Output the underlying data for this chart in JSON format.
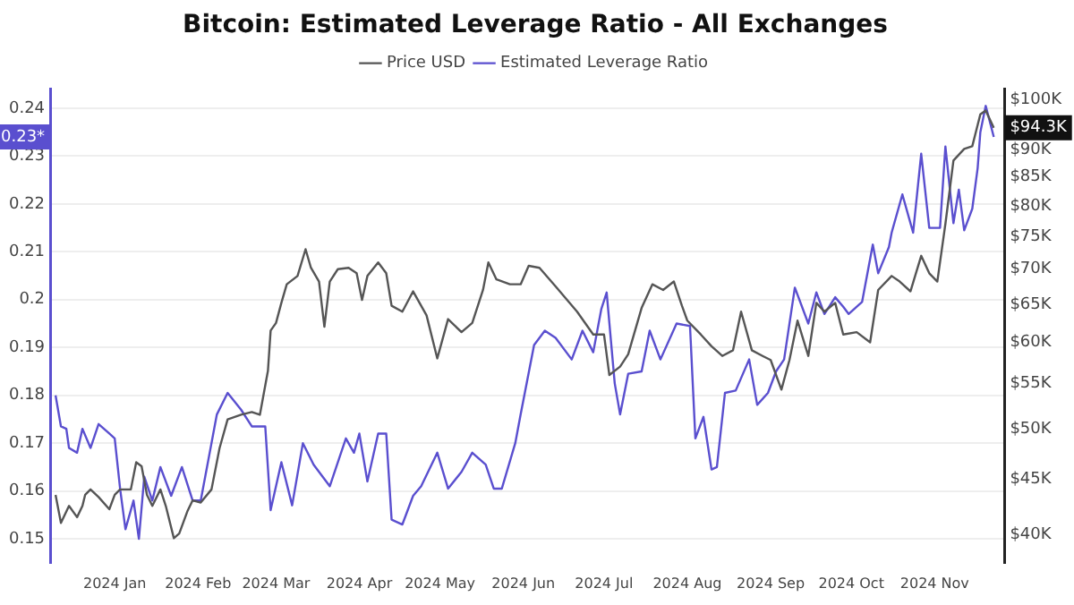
{
  "chart_data": {
    "type": "line",
    "title": "Bitcoin: Estimated Leverage Ratio - All Exchanges",
    "xlim": [
      "2023-12-08",
      "2024-11-27"
    ],
    "xticks": [
      {
        "value": "2024-01-01",
        "label": "2024 Jan"
      },
      {
        "value": "2024-02-01",
        "label": "2024 Feb"
      },
      {
        "value": "2024-03-01",
        "label": "2024 Mar"
      },
      {
        "value": "2024-04-01",
        "label": "2024 Apr"
      },
      {
        "value": "2024-05-01",
        "label": "2024 May"
      },
      {
        "value": "2024-06-01",
        "label": "2024 Jun"
      },
      {
        "value": "2024-07-01",
        "label": "2024 Jul"
      },
      {
        "value": "2024-08-01",
        "label": "2024 Aug"
      },
      {
        "value": "2024-09-01",
        "label": "2024 Sep"
      },
      {
        "value": "2024-10-01",
        "label": "2024 Oct"
      },
      {
        "value": "2024-11-01",
        "label": "2024 Nov"
      }
    ],
    "ylim": [
      0.145,
      0.244
    ],
    "yticks": [
      0.15,
      0.16,
      0.17,
      0.18,
      0.19,
      0.2,
      0.21,
      0.22,
      0.23,
      0.24
    ],
    "y2lim": [
      37700,
      102300
    ],
    "y2ticks": [
      {
        "value": 40000,
        "label": "$40K"
      },
      {
        "value": 45000,
        "label": "$45K"
      },
      {
        "value": 50000,
        "label": "$50K"
      },
      {
        "value": 55000,
        "label": "$55K"
      },
      {
        "value": 60000,
        "label": "$60K"
      },
      {
        "value": 65000,
        "label": "$65K"
      },
      {
        "value": 70000,
        "label": "$70K"
      },
      {
        "value": 75000,
        "label": "$75K"
      },
      {
        "value": 80000,
        "label": "$80K"
      },
      {
        "value": 85000,
        "label": "$85K"
      },
      {
        "value": 90000,
        "label": "$90K"
      },
      {
        "value": 100000,
        "label": "$100K"
      }
    ],
    "log": "y2",
    "grid": "y",
    "legend": "top",
    "marker": "none",
    "line_style": "solid",
    "annotations": [
      "$94.3K",
      "0.23*"
    ],
    "series": [
      {
        "name": "Price USD",
        "color": "#555555",
        "axis": "y2",
        "x": [
          "2023-12-10",
          "2023-12-12",
          "2023-12-15",
          "2023-12-18",
          "2023-12-20",
          "2023-12-21",
          "2023-12-23",
          "2023-12-26",
          "2023-12-30",
          "2024-01-01",
          "2024-01-03",
          "2024-01-07",
          "2024-01-09",
          "2024-01-11",
          "2024-01-13",
          "2024-01-15",
          "2024-01-18",
          "2024-01-20",
          "2024-01-23",
          "2024-01-25",
          "2024-01-28",
          "2024-01-30",
          "2024-02-02",
          "2024-02-06",
          "2024-02-09",
          "2024-02-12",
          "2024-02-17",
          "2024-02-21",
          "2024-02-24",
          "2024-02-27",
          "2024-02-28",
          "2024-03-01",
          "2024-03-03",
          "2024-03-05",
          "2024-03-09",
          "2024-03-12",
          "2024-03-14",
          "2024-03-17",
          "2024-03-19",
          "2024-03-21",
          "2024-03-24",
          "2024-03-28",
          "2024-03-31",
          "2024-04-02",
          "2024-04-04",
          "2024-04-08",
          "2024-04-11",
          "2024-04-13",
          "2024-04-17",
          "2024-04-21",
          "2024-04-26",
          "2024-04-30",
          "2024-05-04",
          "2024-05-09",
          "2024-05-13",
          "2024-05-17",
          "2024-05-19",
          "2024-05-22",
          "2024-05-27",
          "2024-05-31",
          "2024-06-03",
          "2024-06-07",
          "2024-06-13",
          "2024-06-21",
          "2024-06-27",
          "2024-07-01",
          "2024-07-03",
          "2024-07-07",
          "2024-07-10",
          "2024-07-15",
          "2024-07-19",
          "2024-07-23",
          "2024-07-27",
          "2024-07-30",
          "2024-08-01",
          "2024-08-06",
          "2024-08-10",
          "2024-08-14",
          "2024-08-18",
          "2024-08-21",
          "2024-08-25",
          "2024-08-29",
          "2024-09-01",
          "2024-09-05",
          "2024-09-08",
          "2024-09-11",
          "2024-09-15",
          "2024-09-18",
          "2024-09-21",
          "2024-09-25",
          "2024-09-28",
          "2024-10-03",
          "2024-10-08",
          "2024-10-11",
          "2024-10-16",
          "2024-10-19",
          "2024-10-23",
          "2024-10-27",
          "2024-10-30",
          "2024-11-02",
          "2024-11-05",
          "2024-11-08",
          "2024-11-12",
          "2024-11-15",
          "2024-11-18",
          "2024-11-20",
          "2024-11-23"
        ],
        "values": [
          43500,
          41000,
          42500,
          41500,
          42500,
          43500,
          44000,
          43300,
          42200,
          43500,
          44000,
          44000,
          46600,
          46200,
          43500,
          42500,
          44000,
          42500,
          39700,
          40100,
          42000,
          43000,
          42800,
          44000,
          48000,
          51000,
          51500,
          51800,
          51500,
          56500,
          61500,
          62500,
          65200,
          67800,
          69000,
          73000,
          70200,
          68200,
          62000,
          68200,
          70000,
          70200,
          69400,
          65600,
          69000,
          71000,
          69400,
          64800,
          64000,
          66800,
          63500,
          58000,
          63000,
          61300,
          62500,
          67000,
          71000,
          68500,
          67800,
          67800,
          70500,
          70200,
          67500,
          64000,
          61000,
          61000,
          56000,
          57000,
          58500,
          64500,
          67800,
          67000,
          68200,
          64800,
          62800,
          61000,
          59500,
          58300,
          59000,
          64000,
          59000,
          58300,
          57800,
          54300,
          57800,
          62800,
          58300,
          65200,
          64000,
          65200,
          61000,
          61300,
          60000,
          67000,
          69000,
          68200,
          66800,
          72000,
          69400,
          68200,
          77000,
          88000,
          90200,
          90700,
          97000,
          97800,
          94300
        ]
      },
      {
        "name": "Estimated Leverage Ratio",
        "color": "#5a4fcf",
        "x": [
          "2023-12-10",
          "2023-12-12",
          "2023-12-14",
          "2023-12-15",
          "2023-12-18",
          "2023-12-20",
          "2023-12-23",
          "2023-12-26",
          "2023-12-30",
          "2024-01-01",
          "2024-01-03",
          "2024-01-05",
          "2024-01-08",
          "2024-01-10",
          "2024-01-12",
          "2024-01-15",
          "2024-01-18",
          "2024-01-22",
          "2024-01-26",
          "2024-01-30",
          "2024-02-02",
          "2024-02-08",
          "2024-02-12",
          "2024-02-17",
          "2024-02-21",
          "2024-02-26",
          "2024-02-28",
          "2024-03-03",
          "2024-03-07",
          "2024-03-11",
          "2024-03-15",
          "2024-03-21",
          "2024-03-27",
          "2024-03-30",
          "2024-04-01",
          "2024-04-04",
          "2024-04-08",
          "2024-04-11",
          "2024-04-13",
          "2024-04-17",
          "2024-04-21",
          "2024-04-24",
          "2024-04-30",
          "2024-05-04",
          "2024-05-09",
          "2024-05-13",
          "2024-05-18",
          "2024-05-21",
          "2024-05-24",
          "2024-05-29",
          "2024-05-31",
          "2024-06-05",
          "2024-06-09",
          "2024-06-13",
          "2024-06-19",
          "2024-06-23",
          "2024-06-27",
          "2024-06-30",
          "2024-07-02",
          "2024-07-05",
          "2024-07-07",
          "2024-07-10",
          "2024-07-15",
          "2024-07-18",
          "2024-07-22",
          "2024-07-28",
          "2024-08-02",
          "2024-08-04",
          "2024-08-07",
          "2024-08-10",
          "2024-08-12",
          "2024-08-15",
          "2024-08-19",
          "2024-08-24",
          "2024-08-27",
          "2024-08-31",
          "2024-09-03",
          "2024-09-06",
          "2024-09-10",
          "2024-09-15",
          "2024-09-18",
          "2024-09-21",
          "2024-09-25",
          "2024-09-28",
          "2024-09-30",
          "2024-10-05",
          "2024-10-09",
          "2024-10-11",
          "2024-10-15",
          "2024-10-16",
          "2024-10-20",
          "2024-10-24",
          "2024-10-27",
          "2024-10-30",
          "2024-11-03",
          "2024-11-05",
          "2024-11-08",
          "2024-11-10",
          "2024-11-12",
          "2024-11-15",
          "2024-11-17",
          "2024-11-18",
          "2024-11-20",
          "2024-11-23"
        ],
        "values": [
          0.18,
          0.1735,
          0.173,
          0.169,
          0.168,
          0.173,
          0.169,
          0.174,
          0.172,
          0.171,
          0.1605,
          0.152,
          0.158,
          0.15,
          0.163,
          0.158,
          0.165,
          0.159,
          0.165,
          0.158,
          0.158,
          0.176,
          0.1805,
          0.177,
          0.1735,
          0.1735,
          0.156,
          0.166,
          0.157,
          0.17,
          0.1655,
          0.161,
          0.171,
          0.168,
          0.172,
          0.162,
          0.172,
          0.172,
          0.154,
          0.153,
          0.159,
          0.161,
          0.168,
          0.1605,
          0.164,
          0.168,
          0.1655,
          0.1605,
          0.1605,
          0.17,
          0.176,
          0.1905,
          0.1935,
          0.192,
          0.1875,
          0.1935,
          0.189,
          0.198,
          0.2015,
          0.1825,
          0.176,
          0.1845,
          0.185,
          0.1935,
          0.1875,
          0.195,
          0.1945,
          0.171,
          0.1755,
          0.1645,
          0.165,
          0.1805,
          0.181,
          0.1875,
          0.178,
          0.1805,
          0.185,
          0.1875,
          0.2025,
          0.195,
          0.2015,
          0.197,
          0.2005,
          0.1985,
          0.197,
          0.1995,
          0.2115,
          0.2055,
          0.211,
          0.214,
          0.222,
          0.214,
          0.2305,
          0.215,
          0.215,
          0.232,
          0.216,
          0.223,
          0.2145,
          0.219,
          0.2275,
          0.235,
          0.2405,
          0.234
        ]
      }
    ]
  }
}
